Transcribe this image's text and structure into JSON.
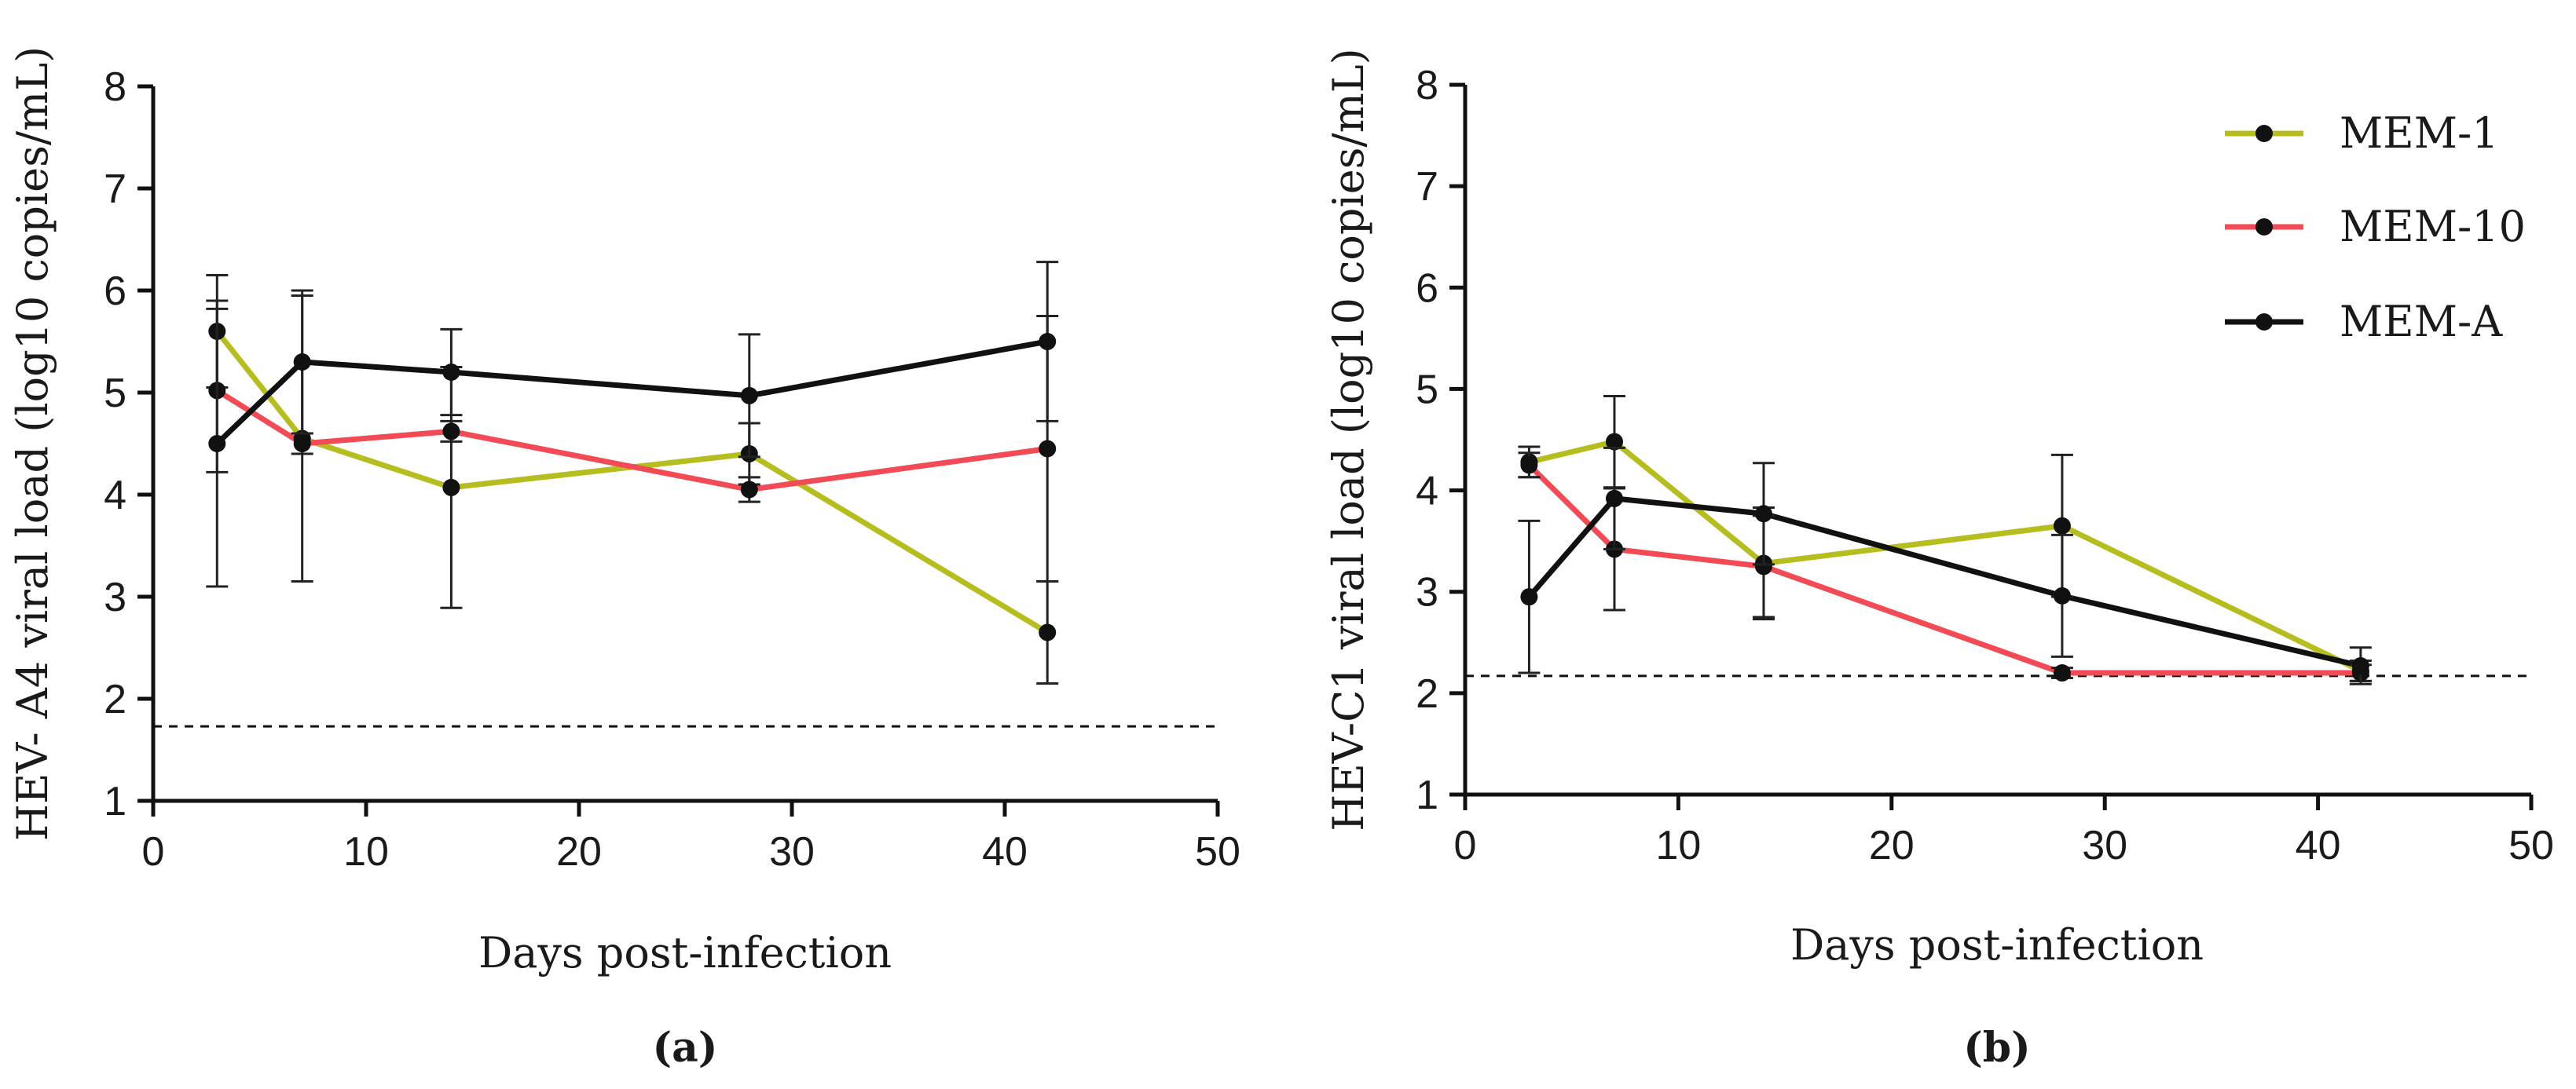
{
  "chart_data": [
    {
      "type": "line",
      "panel_label": "(a)",
      "xlabel": "Days post-infection",
      "ylabel": "HEV- A4 viral load (log10 copies/mL)",
      "xlim": [
        0,
        50
      ],
      "ylim": [
        1,
        8
      ],
      "xticks": [
        "0",
        "10",
        "20",
        "30",
        "40",
        "50"
      ],
      "yticks": [
        "1",
        "2",
        "3",
        "4",
        "5",
        "6",
        "7",
        "8"
      ],
      "detection_limit": 1.73,
      "series": [
        {
          "name": "MEM-1",
          "color": "#b5be1e",
          "x": [
            3,
            7,
            14,
            28,
            42
          ],
          "y": [
            5.6,
            4.55,
            4.07,
            4.4,
            2.65
          ],
          "err": [
            0.55,
            1.4,
            1.18,
            0.3,
            0.5
          ]
        },
        {
          "name": "MEM-10",
          "color": "#f24b55",
          "x": [
            3,
            7,
            14,
            28,
            42
          ],
          "y": [
            5.02,
            4.5,
            4.62,
            4.05,
            4.45
          ],
          "err": [
            0.8,
            0.1,
            0.1,
            0.12,
            1.3
          ]
        },
        {
          "name": "MEM-A",
          "color": "#111111",
          "x": [
            3,
            7,
            14,
            28,
            42
          ],
          "y": [
            4.5,
            5.3,
            5.2,
            4.97,
            5.5
          ],
          "err": [
            1.4,
            0.7,
            0.42,
            0.6,
            0.78
          ]
        }
      ]
    },
    {
      "type": "line",
      "panel_label": "(b)",
      "xlabel": "Days post-infection",
      "ylabel": "HEV-C1 viral load (log10 copies/mL)",
      "xlim": [
        0,
        50
      ],
      "ylim": [
        1,
        8
      ],
      "xticks": [
        "0",
        "10",
        "20",
        "30",
        "40",
        "50"
      ],
      "yticks": [
        "1",
        "2",
        "3",
        "4",
        "5",
        "6",
        "7",
        "8"
      ],
      "detection_limit": 2.17,
      "legend": "top-right",
      "series": [
        {
          "name": "MEM-1",
          "color": "#b5be1e",
          "x": [
            3,
            7,
            14,
            28,
            42
          ],
          "y": [
            4.28,
            4.48,
            3.28,
            3.65,
            2.22
          ],
          "err": [
            0.15,
            0.45,
            0.55,
            0.7,
            0.1
          ]
        },
        {
          "name": "MEM-10",
          "color": "#f24b55",
          "x": [
            3,
            7,
            14,
            28,
            42
          ],
          "y": [
            4.25,
            3.42,
            3.25,
            2.2,
            2.2
          ],
          "err": [
            0.12,
            0.6,
            0.5,
            0.05,
            0.08
          ]
        },
        {
          "name": "MEM-A",
          "color": "#111111",
          "x": [
            3,
            7,
            14,
            28,
            42
          ],
          "y": [
            2.95,
            3.92,
            3.77,
            2.96,
            2.27
          ],
          "err": [
            0.75,
            0.5,
            0.5,
            0.6,
            0.18
          ]
        }
      ]
    }
  ]
}
